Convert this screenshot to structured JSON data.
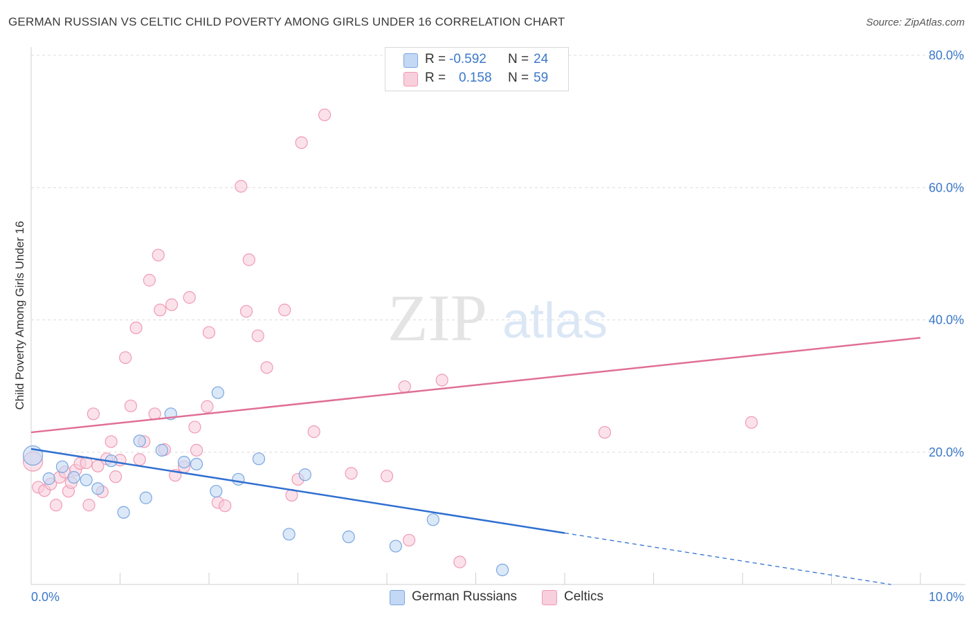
{
  "title": "GERMAN RUSSIAN VS CELTIC CHILD POVERTY AMONG GIRLS UNDER 16 CORRELATION CHART",
  "source": "Source: ZipAtlas.com",
  "watermark": {
    "zip": "ZIP",
    "atlas": "atlas"
  },
  "legend": {
    "rows": [
      {
        "r_label": "R =",
        "r_value": "-0.592",
        "n_label": "N =",
        "n_value": "24",
        "color": "#a9c7ef"
      },
      {
        "r_label": "R =",
        "r_value": "0.158",
        "n_label": "N =",
        "n_value": "59",
        "color": "#f5b6c9"
      }
    ]
  },
  "bottom_legend": [
    {
      "label": "German Russians",
      "color": "#a9c7ef"
    },
    {
      "label": "Celtics",
      "color": "#f5b6c9"
    }
  ],
  "chart_data": {
    "type": "scatter",
    "title": "GERMAN RUSSIAN VS CELTIC CHILD POVERTY AMONG GIRLS UNDER 16 CORRELATION CHART",
    "xlabel": "",
    "ylabel": "Child Poverty Among Girls Under 16",
    "xlim": [
      0,
      10
    ],
    "ylim": [
      0,
      80
    ],
    "x_tick_labels": [
      "0.0%",
      "10.0%"
    ],
    "y_ticks": [
      20,
      40,
      60,
      80
    ],
    "y_tick_labels": [
      "20.0%",
      "40.0%",
      "60.0%",
      "80.0%"
    ],
    "grid": true,
    "legend_position": "top-center",
    "series": [
      {
        "name": "German Russians",
        "color": "#7aa6e0",
        "fill": "#c3d8f4",
        "trend_color": "#2f6fd0",
        "trend": {
          "x0": 0,
          "y0": 20.5,
          "x1": 10,
          "y1": -0.7,
          "solid_until_x": 6.0
        },
        "points": [
          {
            "x": 0.02,
            "y": 19.5,
            "big": true
          },
          {
            "x": 0.2,
            "y": 16.0
          },
          {
            "x": 0.35,
            "y": 17.8
          },
          {
            "x": 0.48,
            "y": 16.2
          },
          {
            "x": 0.62,
            "y": 15.8
          },
          {
            "x": 0.75,
            "y": 14.5
          },
          {
            "x": 0.9,
            "y": 18.7
          },
          {
            "x": 1.04,
            "y": 10.9
          },
          {
            "x": 1.22,
            "y": 21.7
          },
          {
            "x": 1.29,
            "y": 13.1
          },
          {
            "x": 1.47,
            "y": 20.3
          },
          {
            "x": 1.57,
            "y": 25.8
          },
          {
            "x": 1.72,
            "y": 18.5
          },
          {
            "x": 1.86,
            "y": 18.2
          },
          {
            "x": 2.08,
            "y": 14.1
          },
          {
            "x": 2.1,
            "y": 29.0
          },
          {
            "x": 2.33,
            "y": 15.9
          },
          {
            "x": 2.56,
            "y": 19.0
          },
          {
            "x": 2.9,
            "y": 7.6
          },
          {
            "x": 3.08,
            "y": 16.6
          },
          {
            "x": 3.57,
            "y": 7.2
          },
          {
            "x": 4.1,
            "y": 5.8
          },
          {
            "x": 4.52,
            "y": 9.8
          },
          {
            "x": 5.3,
            "y": 2.2
          }
        ]
      },
      {
        "name": "Celtics",
        "color": "#f09ab3",
        "fill": "#f8cfdc",
        "trend_color": "#e06f97",
        "trend": {
          "x0": 0,
          "y0": 23.0,
          "x1": 10,
          "y1": 37.3
        },
        "points": [
          {
            "x": 0.02,
            "y": 18.6,
            "big": true
          },
          {
            "x": 0.08,
            "y": 14.7
          },
          {
            "x": 0.15,
            "y": 14.2
          },
          {
            "x": 0.22,
            "y": 15.2
          },
          {
            "x": 0.28,
            "y": 12.0
          },
          {
            "x": 0.32,
            "y": 16.2
          },
          {
            "x": 0.38,
            "y": 17.0
          },
          {
            "x": 0.42,
            "y": 14.1
          },
          {
            "x": 0.45,
            "y": 15.4
          },
          {
            "x": 0.5,
            "y": 17.3
          },
          {
            "x": 0.55,
            "y": 18.3
          },
          {
            "x": 0.62,
            "y": 18.4
          },
          {
            "x": 0.65,
            "y": 12.0
          },
          {
            "x": 0.7,
            "y": 25.8
          },
          {
            "x": 0.75,
            "y": 17.9
          },
          {
            "x": 0.8,
            "y": 14.0
          },
          {
            "x": 0.85,
            "y": 19.0
          },
          {
            "x": 0.9,
            "y": 21.6
          },
          {
            "x": 0.95,
            "y": 16.3
          },
          {
            "x": 1.0,
            "y": 18.8
          },
          {
            "x": 1.06,
            "y": 34.3
          },
          {
            "x": 1.12,
            "y": 27.0
          },
          {
            "x": 1.18,
            "y": 38.8
          },
          {
            "x": 1.22,
            "y": 18.9
          },
          {
            "x": 1.27,
            "y": 21.6
          },
          {
            "x": 1.33,
            "y": 46.0
          },
          {
            "x": 1.39,
            "y": 25.8
          },
          {
            "x": 1.43,
            "y": 49.8
          },
          {
            "x": 1.45,
            "y": 41.5
          },
          {
            "x": 1.5,
            "y": 20.4
          },
          {
            "x": 1.58,
            "y": 42.3
          },
          {
            "x": 1.62,
            "y": 16.5
          },
          {
            "x": 1.72,
            "y": 17.8
          },
          {
            "x": 1.78,
            "y": 43.4
          },
          {
            "x": 1.84,
            "y": 23.8
          },
          {
            "x": 1.86,
            "y": 20.3
          },
          {
            "x": 1.98,
            "y": 26.9
          },
          {
            "x": 2.0,
            "y": 38.1
          },
          {
            "x": 2.1,
            "y": 12.4
          },
          {
            "x": 2.18,
            "y": 11.9
          },
          {
            "x": 2.36,
            "y": 60.2
          },
          {
            "x": 2.42,
            "y": 41.3
          },
          {
            "x": 2.45,
            "y": 49.1
          },
          {
            "x": 2.55,
            "y": 37.6
          },
          {
            "x": 2.65,
            "y": 32.8
          },
          {
            "x": 2.85,
            "y": 41.5
          },
          {
            "x": 2.93,
            "y": 13.5
          },
          {
            "x": 3.0,
            "y": 15.9
          },
          {
            "x": 3.04,
            "y": 66.8
          },
          {
            "x": 3.18,
            "y": 23.1
          },
          {
            "x": 3.3,
            "y": 71.0
          },
          {
            "x": 3.6,
            "y": 16.8
          },
          {
            "x": 4.0,
            "y": 16.4
          },
          {
            "x": 4.2,
            "y": 29.9
          },
          {
            "x": 4.25,
            "y": 6.7
          },
          {
            "x": 4.62,
            "y": 30.9
          },
          {
            "x": 4.82,
            "y": 3.4
          },
          {
            "x": 6.45,
            "y": 23.0
          },
          {
            "x": 8.1,
            "y": 24.5
          }
        ]
      }
    ]
  }
}
